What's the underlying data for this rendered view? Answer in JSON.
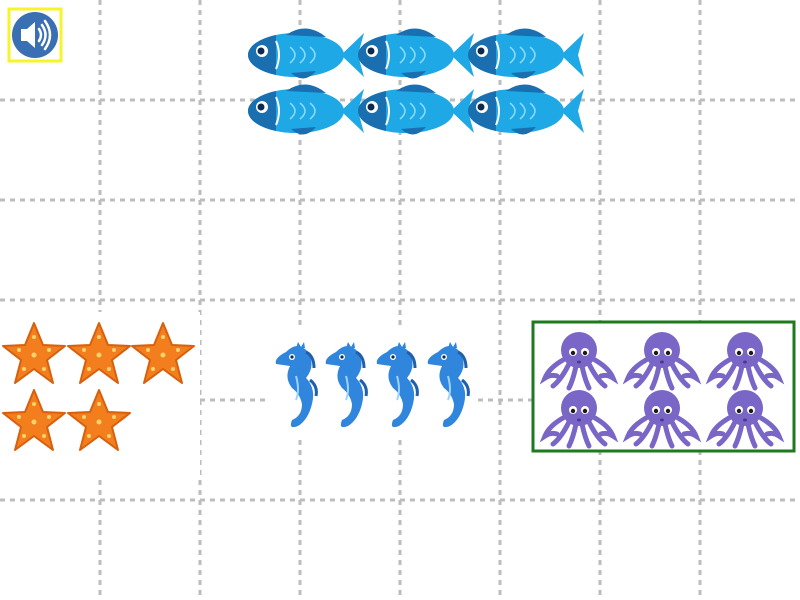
{
  "colors": {
    "sound_frame": "#f5f52a",
    "sound_button": "#3a6fb3",
    "selection_frame": "#1f7a1f",
    "grid": "#bdbdbd",
    "fish": "#1fa8e6",
    "fish_dark": "#1a6fb0",
    "starfish": "#f27e1e",
    "seahorse": "#2f86dc",
    "octopus": "#7a66c7"
  },
  "sound_button": {
    "icon": "speaker-icon",
    "selected": true
  },
  "groups": [
    {
      "animal": "fish",
      "icon": "fish-icon",
      "count": 6
    },
    {
      "animal": "starfish",
      "icon": "starfish-icon",
      "count": 5
    },
    {
      "animal": "seahorse",
      "icon": "seahorse-icon",
      "count": 4
    },
    {
      "animal": "octopus",
      "icon": "octopus-icon",
      "count": 6,
      "selected": true
    }
  ]
}
